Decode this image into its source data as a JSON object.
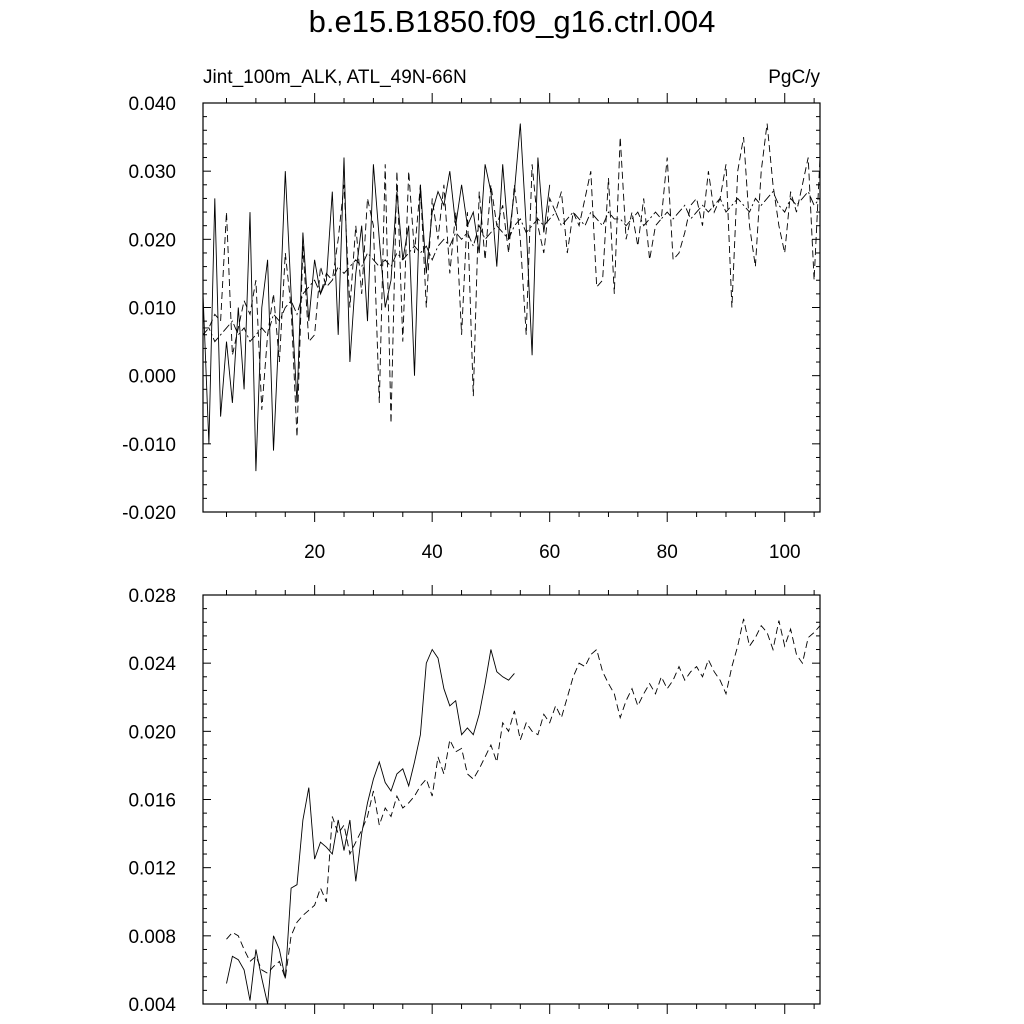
{
  "title": "b.e15.B1850.f09_g16.ctrl.004",
  "chart_data": [
    {
      "type": "line",
      "left_label": "Jint_100m_ALK, ATL_49N-66N",
      "right_label": "PgC/y",
      "xlim": [
        1,
        106
      ],
      "ylim": [
        -0.02,
        0.04
      ],
      "x_ticks": [
        "20",
        "40",
        "60",
        "80",
        "100"
      ],
      "y_ticks": [
        "-0.020",
        "-0.010",
        "0.000",
        "0.010",
        "0.020",
        "0.030",
        "0.040"
      ],
      "series": [
        {
          "style": "solid",
          "x_start": 1,
          "values": [
            0.012,
            -0.01,
            0.026,
            -0.006,
            0.005,
            -0.004,
            0.01,
            -0.002,
            0.024,
            -0.014,
            0.01,
            0.017,
            -0.011,
            0.008,
            0.03,
            0.012,
            -0.004,
            0.021,
            0.008,
            0.017,
            0.012,
            0.014,
            0.027,
            0.006,
            0.032,
            0.002,
            0.015,
            0.022,
            0.008,
            0.031,
            0.02,
            0.01,
            0.014,
            0.027,
            0.017,
            0.022,
            0.0,
            0.028,
            0.015,
            0.024,
            0.027,
            0.025,
            0.03,
            0.022,
            0.028,
            0.022,
            0.024,
            0.018,
            0.031,
            0.027,
            0.016,
            0.031,
            0.02,
            0.027,
            0.037,
            0.022,
            0.003,
            0.032,
            0.021,
            0.028
          ]
        },
        {
          "style": "dashed",
          "x_start": 1,
          "values": [
            0.006,
            0.007,
            0.009,
            0.008,
            0.024,
            0.003,
            0.007,
            0.011,
            0.009,
            0.014,
            -0.005,
            0.006,
            0.012,
            0.002,
            0.018,
            0.01,
            -0.009,
            0.019,
            0.005,
            0.006,
            0.016,
            0.013,
            0.014,
            0.02,
            0.028,
            0.01,
            0.022,
            0.012,
            0.026,
            0.022,
            -0.004,
            0.031,
            -0.007,
            0.03,
            0.005,
            0.03,
            0.018,
            0.028,
            0.01,
            0.026,
            0.02,
            0.028,
            0.015,
            0.024,
            0.006,
            0.024,
            -0.003,
            0.027,
            0.017,
            0.028,
            0.022,
            0.025,
            0.018,
            0.028,
            0.02,
            0.006,
            0.031,
            0.022,
            0.018,
            0.026,
            0.024,
            0.027,
            0.018,
            0.024,
            0.022,
            0.026,
            0.03,
            0.013,
            0.014,
            0.029,
            0.012,
            0.035,
            0.02,
            0.024,
            0.019,
            0.026,
            0.017,
            0.022,
            0.023,
            0.032,
            0.017,
            0.018,
            0.021,
            0.025,
            0.026,
            0.022,
            0.03,
            0.024,
            0.026,
            0.031,
            0.01,
            0.03,
            0.035,
            0.022,
            0.016,
            0.03,
            0.037,
            0.028,
            0.022,
            0.018,
            0.027,
            0.024,
            0.028,
            0.032,
            0.014,
            0.032
          ]
        },
        {
          "style": "dashdot",
          "x_start": 1,
          "values": [
            0.007,
            0.007,
            0.005,
            0.006,
            0.007,
            0.008,
            0.006,
            0.007,
            0.005,
            0.006,
            0.007,
            0.006,
            0.009,
            0.008,
            0.01,
            0.011,
            0.009,
            0.012,
            0.013,
            0.014,
            0.012,
            0.015,
            0.014,
            0.016,
            0.015,
            0.016,
            0.017,
            0.016,
            0.018,
            0.017,
            0.016,
            0.017,
            0.016,
            0.018,
            0.017,
            0.018,
            0.019,
            0.018,
            0.019,
            0.017,
            0.019,
            0.02,
            0.019,
            0.021,
            0.02,
            0.021,
            0.019,
            0.022,
            0.02,
            0.021,
            0.022,
            0.021,
            0.02,
            0.022,
            0.023,
            0.021,
            0.022,
            0.023,
            0.022,
            0.023,
            0.024,
            0.022,
            0.023,
            0.024,
            0.023,
            0.022,
            0.024,
            0.023,
            0.022,
            0.024,
            0.023,
            0.023,
            0.022,
            0.023,
            0.024,
            0.022,
            0.023,
            0.024,
            0.023,
            0.024,
            0.023,
            0.024,
            0.025,
            0.023,
            0.024,
            0.025,
            0.024,
            0.025,
            0.026,
            0.024,
            0.025,
            0.026,
            0.025,
            0.024,
            0.026,
            0.025,
            0.026,
            0.027,
            0.025,
            0.024,
            0.026,
            0.025,
            0.026,
            0.027,
            0.025,
            0.026
          ]
        }
      ]
    },
    {
      "type": "line",
      "xlim": [
        1,
        106
      ],
      "ylim": [
        0.004,
        0.028
      ],
      "y_ticks": [
        "0.004",
        "0.008",
        "0.012",
        "0.016",
        "0.020",
        "0.024",
        "0.028"
      ],
      "series": [
        {
          "style": "solid",
          "x_start": 5,
          "values": [
            0.0052,
            0.0068,
            0.0066,
            0.006,
            0.0042,
            0.0072,
            0.0055,
            0.004,
            0.008,
            0.0072,
            0.0055,
            0.0108,
            0.011,
            0.0148,
            0.0167,
            0.0125,
            0.0135,
            0.0132,
            0.0128,
            0.0148,
            0.013,
            0.0148,
            0.0112,
            0.014,
            0.0158,
            0.0172,
            0.0182,
            0.017,
            0.0165,
            0.0175,
            0.0178,
            0.0168,
            0.0182,
            0.0198,
            0.024,
            0.0248,
            0.0243,
            0.0225,
            0.0215,
            0.0218,
            0.0198,
            0.0202,
            0.0198,
            0.021,
            0.0228,
            0.0248,
            0.0235,
            0.0232,
            0.023,
            0.0234
          ]
        },
        {
          "style": "dashed",
          "x_start": 5,
          "values": [
            0.0078,
            0.0082,
            0.008,
            0.0072,
            0.0065,
            0.0068,
            0.006,
            0.0058,
            0.0062,
            0.0065,
            0.0055,
            0.008,
            0.0088,
            0.0092,
            0.0095,
            0.0098,
            0.0108,
            0.01,
            0.015,
            0.014,
            0.0145,
            0.0128,
            0.0135,
            0.0142,
            0.015,
            0.0165,
            0.0145,
            0.0155,
            0.015,
            0.0162,
            0.0155,
            0.0158,
            0.0162,
            0.0168,
            0.0172,
            0.0162,
            0.0185,
            0.0175,
            0.0195,
            0.0188,
            0.019,
            0.0175,
            0.0172,
            0.0178,
            0.0185,
            0.0192,
            0.0182,
            0.0205,
            0.02,
            0.0212,
            0.0195,
            0.0205,
            0.02,
            0.0198,
            0.021,
            0.0205,
            0.0215,
            0.0208,
            0.022,
            0.0232,
            0.024,
            0.0238,
            0.0245,
            0.0248,
            0.0235,
            0.0228,
            0.0222,
            0.0208,
            0.0218,
            0.0225,
            0.0215,
            0.0222,
            0.0228,
            0.0222,
            0.0232,
            0.0225,
            0.023,
            0.0238,
            0.023,
            0.0235,
            0.0238,
            0.0232,
            0.0242,
            0.0235,
            0.023,
            0.0222,
            0.0238,
            0.025,
            0.0266,
            0.025,
            0.0255,
            0.0262,
            0.0258,
            0.0248,
            0.0265,
            0.025,
            0.026,
            0.0245,
            0.024,
            0.0255,
            0.0258,
            0.0262,
            0.023,
            0.0245
          ]
        }
      ]
    }
  ]
}
